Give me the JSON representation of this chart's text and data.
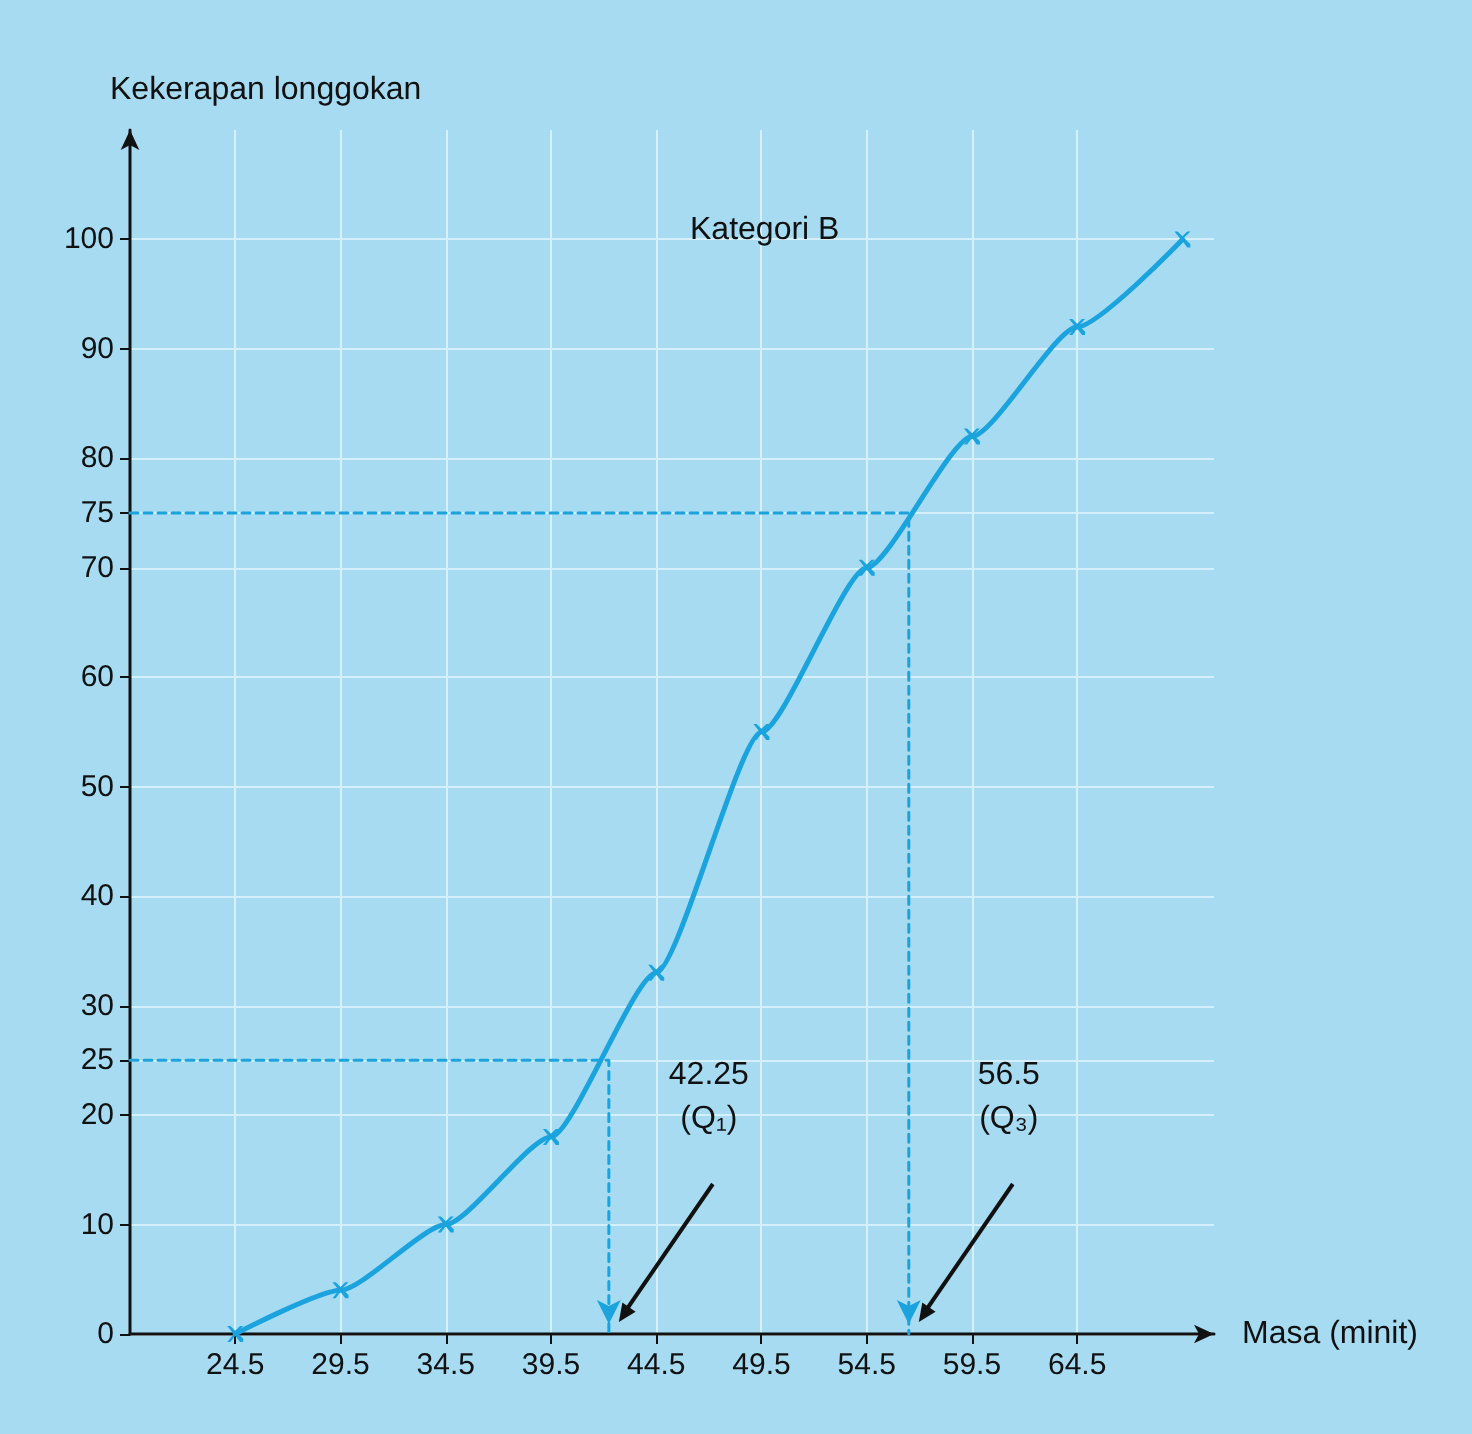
{
  "chart_data": {
    "type": "line",
    "title": "Kategori B",
    "xlabel": "Masa (minit)",
    "ylabel": "Kekerapan longgokan",
    "x": [
      24.5,
      29.5,
      34.5,
      39.5,
      44.5,
      49.5,
      54.5,
      59.5,
      64.5,
      69.5
    ],
    "series": [
      {
        "color": "#1ba3dd",
        "values": [
          0,
          4,
          10,
          18,
          33,
          55,
          70,
          82,
          92,
          100
        ]
      },
      {
        "type": "line",
        "color": "#1ba3dd",
        "line_style": "dashed",
        "marker": "none",
        "x": [
          19.5,
          42.25,
          42.25
        ],
        "values": [
          25,
          25,
          0
        ]
      },
      {
        "type": "line",
        "color": "#1ba3dd",
        "line_style": "dashed",
        "marker": "none",
        "x": [
          19.5,
          56.5,
          56.5
        ],
        "values": [
          75,
          75,
          0
        ]
      }
    ],
    "annotations": [
      "42.25\n(Q₁)",
      "56.5\n(Q₃)"
    ],
    "xlim": [
      19.5,
      71
    ],
    "xticks": [
      24.5,
      29.5,
      34.5,
      39.5,
      44.5,
      49.5,
      54.5,
      59.5,
      64.5
    ],
    "ylim": [
      0,
      110
    ],
    "yticks": [
      0,
      10,
      20,
      25,
      30,
      40,
      50,
      60,
      70,
      75,
      80,
      90,
      100
    ],
    "grid": true,
    "marker": "cross",
    "line_style": "solid"
  }
}
